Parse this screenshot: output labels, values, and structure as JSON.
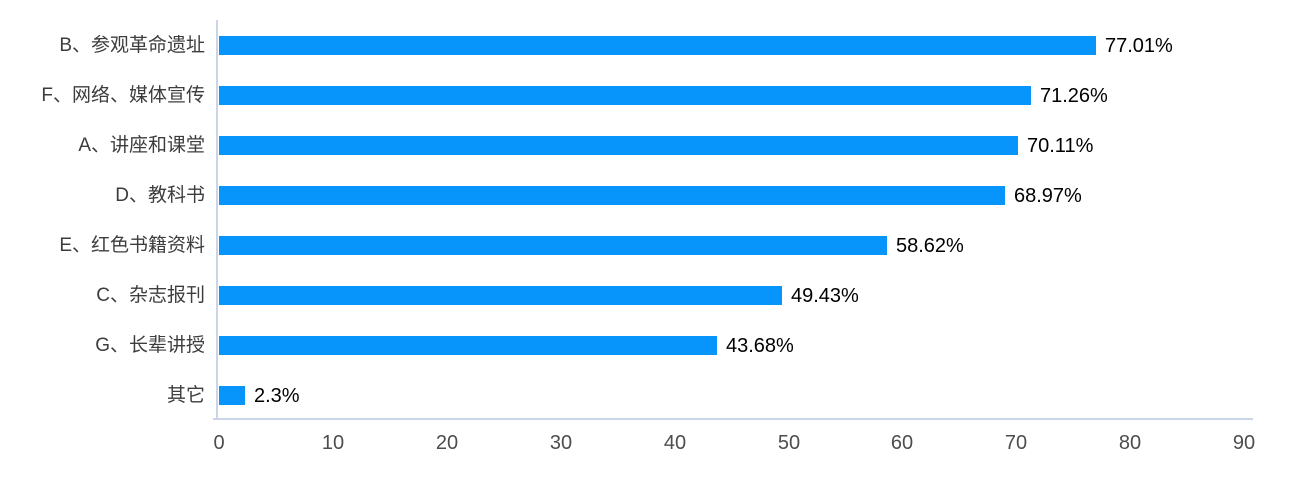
{
  "chart_data": {
    "type": "bar",
    "orientation": "horizontal",
    "title": "",
    "xlabel": "",
    "ylabel": "",
    "categories": [
      "B、参观革命遗址",
      "F、网络、媒体宣传",
      "A、讲座和课堂",
      "D、教科书",
      "E、红色书籍资料",
      "C、杂志报刊",
      "G、长辈讲授",
      "其它"
    ],
    "values": [
      77.01,
      71.26,
      70.11,
      68.97,
      58.62,
      49.43,
      43.68,
      2.3
    ],
    "value_labels": [
      "77.01%",
      "71.26%",
      "70.11%",
      "68.97%",
      "58.62%",
      "49.43%",
      "43.68%",
      "2.3%"
    ],
    "x_ticks": [
      "0",
      "10",
      "20",
      "30",
      "40",
      "50",
      "60",
      "70",
      "80",
      "90"
    ],
    "xlim": [
      0,
      90
    ],
    "grid": false,
    "legend": false,
    "bar_color": "#0895fb",
    "axis_line_color": "#ccd5e8",
    "category_label_color": "#3d3d3d",
    "value_label_color": "#000000",
    "tick_label_color": "#4d4d4d"
  }
}
